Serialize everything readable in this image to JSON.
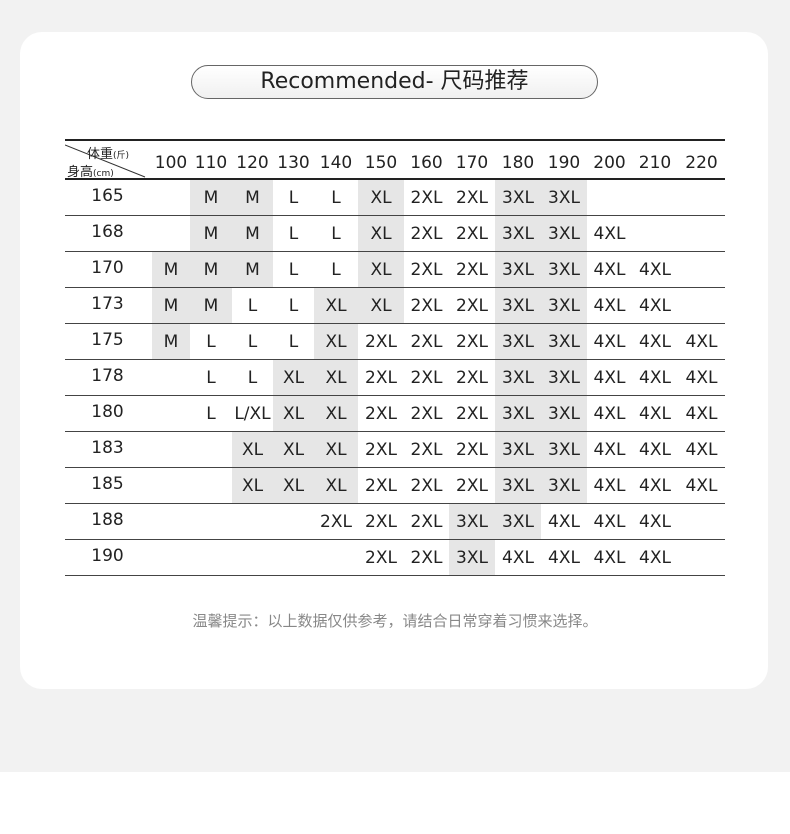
{
  "title": "Recommended- 尺码推荐",
  "table": {
    "corner_weight": "体重",
    "corner_weight_unit": "(斤)",
    "corner_height": "身高",
    "corner_height_unit": "(cm)",
    "weights": [
      "100",
      "110",
      "120",
      "130",
      "140",
      "150",
      "160",
      "170",
      "180",
      "190",
      "200",
      "210",
      "220"
    ],
    "highlight_sizes": [
      "M",
      "XL",
      "3XL"
    ],
    "highlight_color": "#e6e6e6",
    "rows": [
      {
        "height": "165",
        "sizes": [
          "",
          "M",
          "M",
          "L",
          "L",
          "XL",
          "2XL",
          "2XL",
          "3XL",
          "3XL",
          "",
          "",
          ""
        ]
      },
      {
        "height": "168",
        "sizes": [
          "",
          "M",
          "M",
          "L",
          "L",
          "XL",
          "2XL",
          "2XL",
          "3XL",
          "3XL",
          "4XL",
          "",
          ""
        ]
      },
      {
        "height": "170",
        "sizes": [
          "M",
          "M",
          "M",
          "L",
          "L",
          "XL",
          "2XL",
          "2XL",
          "3XL",
          "3XL",
          "4XL",
          "4XL",
          ""
        ]
      },
      {
        "height": "173",
        "sizes": [
          "M",
          "M",
          "L",
          "L",
          "XL",
          "XL",
          "2XL",
          "2XL",
          "3XL",
          "3XL",
          "4XL",
          "4XL",
          ""
        ]
      },
      {
        "height": "175",
        "sizes": [
          "M",
          "L",
          "L",
          "L",
          "XL",
          "2XL",
          "2XL",
          "2XL",
          "3XL",
          "3XL",
          "4XL",
          "4XL",
          "4XL"
        ]
      },
      {
        "height": "178",
        "sizes": [
          "",
          "L",
          "L",
          "XL",
          "XL",
          "2XL",
          "2XL",
          "2XL",
          "3XL",
          "3XL",
          "4XL",
          "4XL",
          "4XL"
        ]
      },
      {
        "height": "180",
        "sizes": [
          "",
          "L",
          "L/XL",
          "XL",
          "XL",
          "2XL",
          "2XL",
          "2XL",
          "3XL",
          "3XL",
          "4XL",
          "4XL",
          "4XL"
        ]
      },
      {
        "height": "183",
        "sizes": [
          "",
          "",
          "XL",
          "XL",
          "XL",
          "2XL",
          "2XL",
          "2XL",
          "3XL",
          "3XL",
          "4XL",
          "4XL",
          "4XL"
        ]
      },
      {
        "height": "185",
        "sizes": [
          "",
          "",
          "XL",
          "XL",
          "XL",
          "2XL",
          "2XL",
          "2XL",
          "3XL",
          "3XL",
          "4XL",
          "4XL",
          "4XL"
        ]
      },
      {
        "height": "188",
        "sizes": [
          "",
          "",
          "",
          "",
          "2XL",
          "2XL",
          "2XL",
          "3XL",
          "3XL",
          "4XL",
          "4XL",
          "4XL",
          ""
        ]
      },
      {
        "height": "190",
        "sizes": [
          "",
          "",
          "",
          "",
          "",
          "2XL",
          "2XL",
          "3XL",
          "4XL",
          "4XL",
          "4XL",
          "4XL",
          ""
        ]
      }
    ]
  },
  "note": "温馨提示：以上数据仅供参考，请结合日常穿着习惯来选择。"
}
